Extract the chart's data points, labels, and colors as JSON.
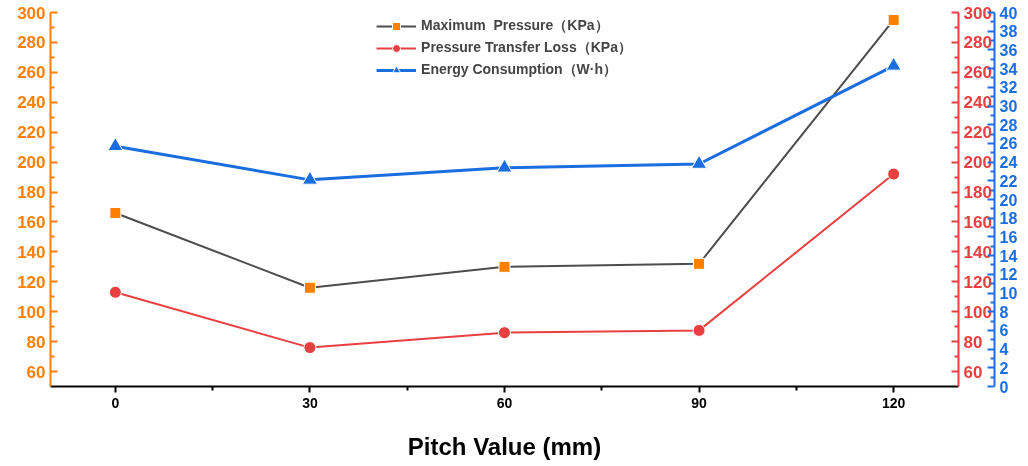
{
  "chart_data": {
    "type": "line",
    "xlabel": "Pitch Value (mm)",
    "x": [
      0,
      30,
      60,
      90,
      120
    ],
    "xlim": [
      -10,
      130
    ],
    "xticks": [
      0,
      30,
      60,
      90,
      120
    ],
    "ylim": [
      50,
      300
    ],
    "yticks": [
      60,
      80,
      100,
      120,
      140,
      160,
      180,
      200,
      220,
      240,
      260,
      280,
      300
    ],
    "y2lim": [
      50,
      300
    ],
    "y2ticks": [
      60,
      80,
      100,
      120,
      140,
      160,
      180,
      200,
      220,
      240,
      260,
      280,
      300
    ],
    "y3lim": [
      0,
      40
    ],
    "y3ticks": [
      0,
      2,
      4,
      6,
      8,
      10,
      12,
      14,
      16,
      18,
      20,
      22,
      24,
      26,
      28,
      30,
      32,
      34,
      36,
      38,
      40
    ],
    "grid": false,
    "legend": "top",
    "series": [
      {
        "name": "Maximum  Pressure（KPa）",
        "color": "#4d4d4d",
        "colors": [
          "#ff7f00",
          "#ff7f00",
          "#ff7f00",
          "#ff7f00",
          "#ff7f00"
        ],
        "marker": "square",
        "axis": "y",
        "values": [
          166,
          116,
          130,
          132,
          295
        ]
      },
      {
        "name": "Pressure Transfer Loss（KPa）",
        "color": "#e84040",
        "marker": "circle",
        "axis": "y2",
        "values": [
          113,
          76,
          86,
          87.5,
          192
        ]
      },
      {
        "name": "Energy Consumption（W·h）",
        "color": "#1a6ee0",
        "marker": "triangle",
        "axis": "y3",
        "values": [
          25.7,
          22.1,
          23.4,
          23.8,
          34.3
        ]
      }
    ]
  }
}
